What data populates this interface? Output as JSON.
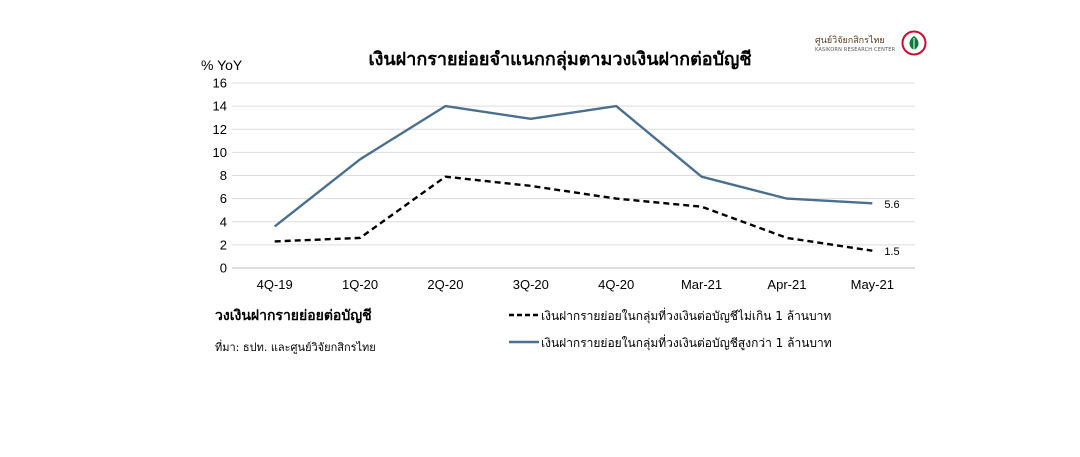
{
  "logo": {
    "name": "ศูนย์วิจัยกสิกรไทย",
    "tagline": "KASIKORN RESEARCH CENTER",
    "icon": "kasikorn-leaf-icon",
    "colors": {
      "ring": "#c8102e",
      "leaf": "#0a7a3d"
    }
  },
  "legend": {
    "group_label": "วงเงินฝากรายย่อยต่อบัญชี",
    "source": "ที่มา: ธปท. และศูนย์วิจัยกสิกรไทย"
  },
  "chart_data": {
    "type": "line",
    "title": "เงินฝากรายย่อยจำแนกกลุ่มตามวงเงินฝากต่อบัญชี",
    "ylabel": "% YoY",
    "xlabel": "",
    "categories": [
      "4Q-19",
      "1Q-20",
      "2Q-20",
      "3Q-20",
      "4Q-20",
      "Mar-21",
      "Apr-21",
      "May-21"
    ],
    "ylim": [
      0,
      16
    ],
    "yticks": [
      0,
      2,
      4,
      6,
      8,
      10,
      12,
      14,
      16
    ],
    "grid": true,
    "series": [
      {
        "name": "เงินฝากรายย่อยในกลุ่มที่วงเงินต่อบัญชีไม่เกิน 1 ล้านบาท",
        "values": [
          2.3,
          2.6,
          7.9,
          7.1,
          6.0,
          5.3,
          2.6,
          1.5
        ],
        "color": "#000000",
        "style": "dashed",
        "end_label": "1.5"
      },
      {
        "name": "เงินฝากรายย่อยในกลุ่มที่วงเงินต่อบัญชีสูงกว่า 1 ล้านบาท",
        "values": [
          3.6,
          9.4,
          14.0,
          12.9,
          14.0,
          7.9,
          6.0,
          5.6
        ],
        "color": "#4a6f8f",
        "style": "solid",
        "end_label": "5.6"
      }
    ]
  }
}
